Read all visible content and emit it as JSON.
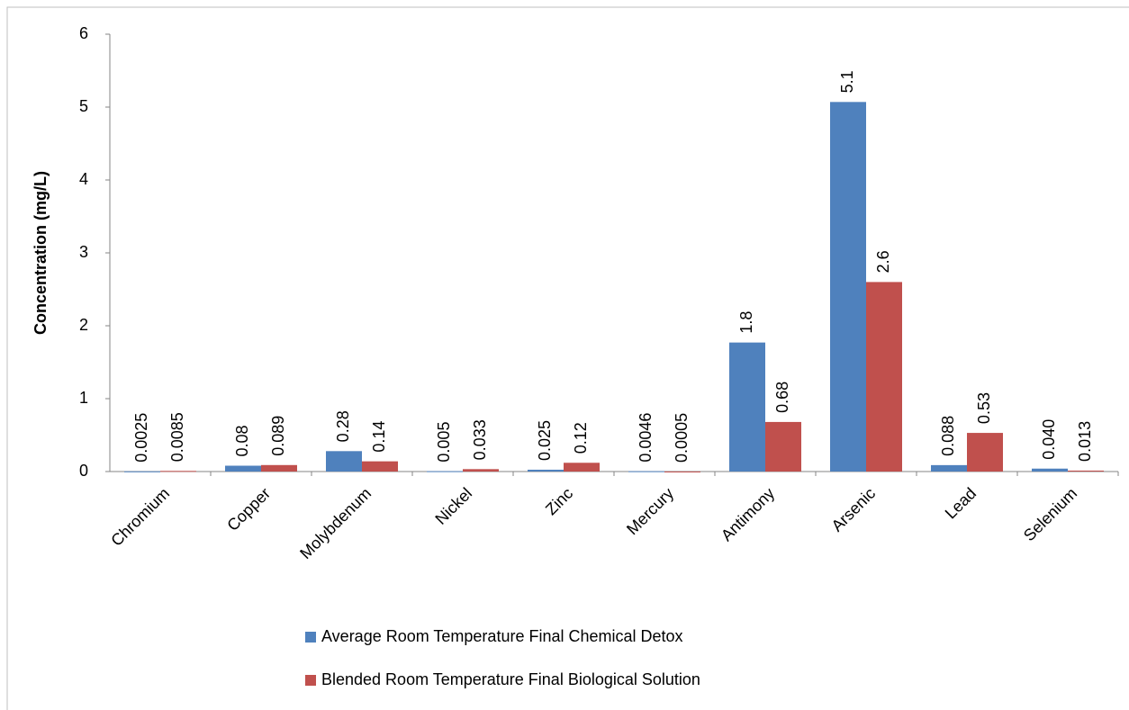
{
  "chart_data": {
    "type": "bar",
    "y_label": "Concentration (mg/L)",
    "categories": [
      "Chromium",
      "Copper",
      "Molybdenum",
      "Nickel",
      "Zinc",
      "Mercury",
      "Antimony",
      "Arsenic",
      "Lead",
      "Selenium"
    ],
    "series": [
      {
        "name": "Average Room Temperature Final Chemical Detox",
        "color": "#4f81bd",
        "values": [
          0.0025,
          0.08,
          0.28,
          0.005,
          0.025,
          0.0046,
          1.77,
          5.07,
          0.088,
          0.04
        ],
        "value_labels": [
          "0.0025",
          "0.08",
          "0.28",
          "0.005",
          "0.025",
          "0.0046",
          "1.8",
          "5.1",
          "0.088",
          "0.040"
        ]
      },
      {
        "name": "Blended Room Temperature Final Biological Solution",
        "color": "#c0504d",
        "values": [
          0.0085,
          0.089,
          0.14,
          0.033,
          0.12,
          0.0005,
          0.68,
          2.6,
          0.53,
          0.013
        ],
        "value_labels": [
          "0.0085",
          "0.089",
          "0.14",
          "0.033",
          "0.12",
          "0.0005",
          "0.68",
          "2.6",
          "0.53",
          "0.013"
        ]
      }
    ],
    "ylim": [
      0,
      6
    ],
    "yticks": [
      0,
      1,
      2,
      3,
      4,
      5,
      6
    ],
    "grid": false,
    "legend": "bottom"
  }
}
